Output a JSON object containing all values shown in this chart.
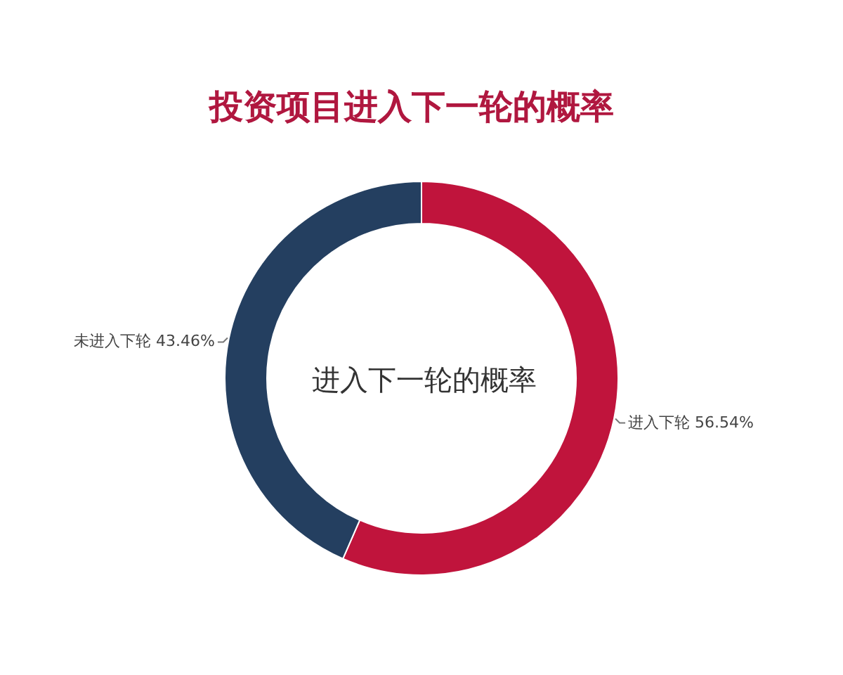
{
  "chart_data": {
    "type": "donut",
    "title": "投资项目进入下一轮的概率",
    "categories": [
      "进入下轮",
      "未进入下轮"
    ],
    "values": [
      56.54,
      43.46
    ],
    "colors": [
      "#c0143c",
      "#243f60"
    ],
    "value_labels": [
      "56.54%",
      "43.46%"
    ],
    "annotations": [
      "进入下一轮的概率"
    ]
  }
}
